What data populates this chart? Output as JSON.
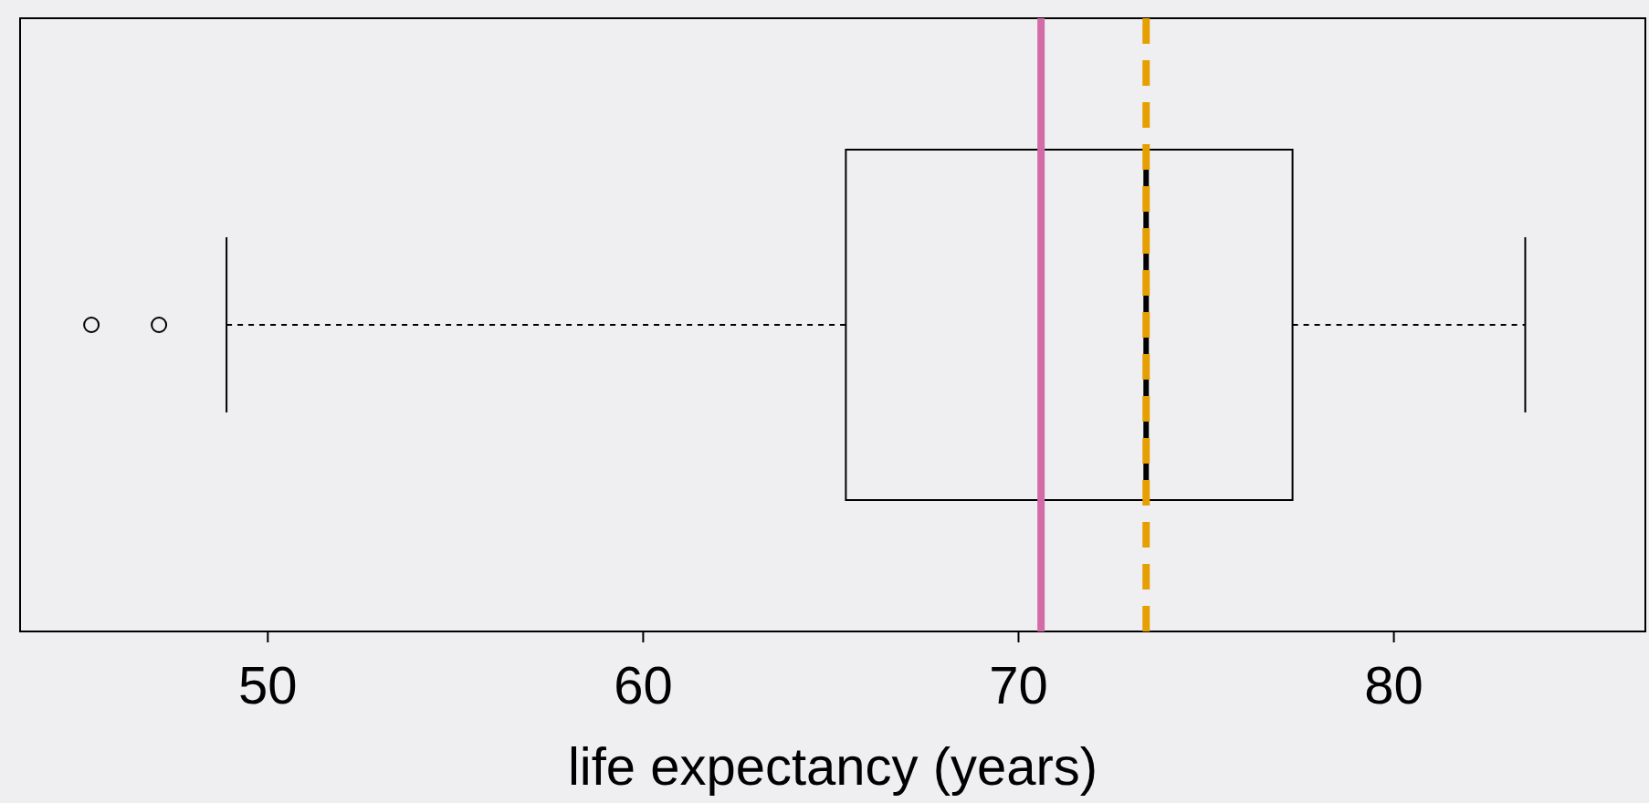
{
  "chart_data": {
    "type": "box",
    "orientation": "horizontal",
    "xlabel": "life expectancy (years)",
    "categories": [
      null
    ],
    "boxes": [
      {
        "low": 48.9,
        "q1": 65.4,
        "median": 73.4,
        "q3": 77.3,
        "high": 83.5,
        "outliers": [
          45.3,
          47.1
        ]
      }
    ],
    "xlim": [
      43.4,
      86.7
    ],
    "xticks": [
      50,
      60,
      70,
      80
    ],
    "tick_labels": "x",
    "grid": false,
    "ref_lines": [
      {
        "axis": "x",
        "value": 70.6,
        "color": "#d36ba6",
        "line_style": "solid"
      },
      {
        "axis": "x",
        "value": 73.4,
        "color": "#e69f00",
        "line_style": "dashed"
      }
    ]
  }
}
